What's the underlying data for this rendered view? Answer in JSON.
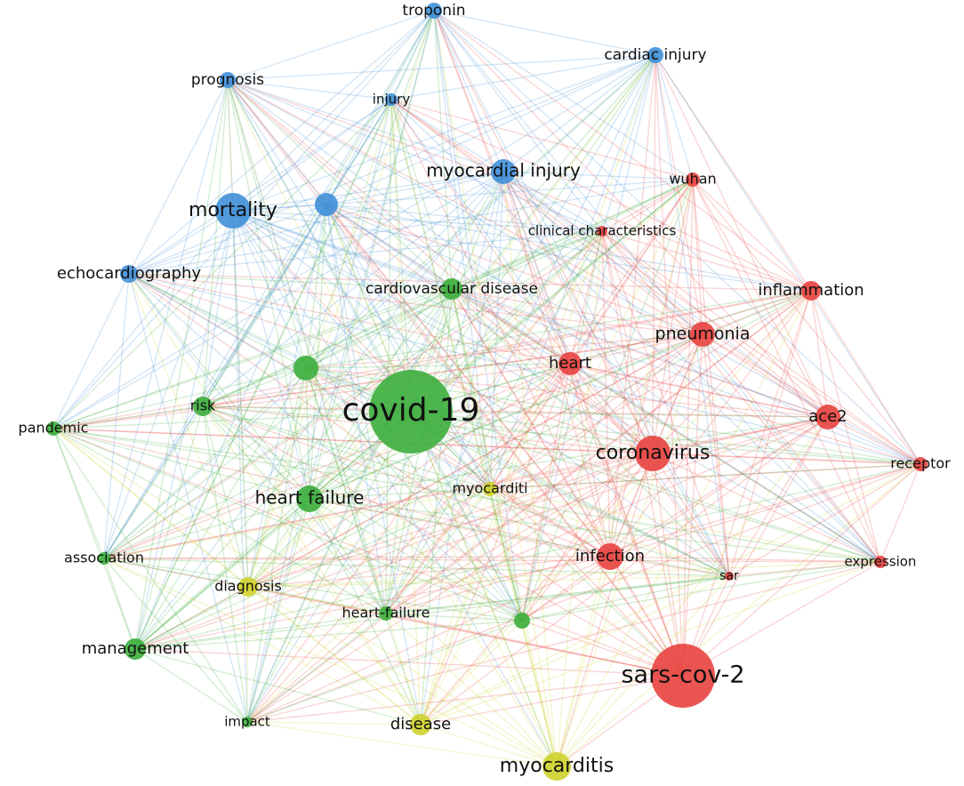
{
  "nodes": [
    {
      "label": "troponin"
    },
    {
      "label": "cardiac injury"
    },
    {
      "label": "prognosis"
    },
    {
      "label": "injury"
    },
    {
      "label": "myocardial injury"
    },
    {
      "label": "mortality"
    },
    {
      "label": "echocardiography"
    },
    {
      "label": "wuhan"
    },
    {
      "label": "clinical characteristics"
    },
    {
      "label": "inflammation"
    },
    {
      "label": "pneumonia"
    },
    {
      "label": "heart"
    },
    {
      "label": "ace2"
    },
    {
      "label": "coronavirus"
    },
    {
      "label": "receptor"
    },
    {
      "label": "infection"
    },
    {
      "label": "expression"
    },
    {
      "label": "sar"
    },
    {
      "label": "sars-cov-2"
    },
    {
      "label": "cardiovascular disease"
    },
    {
      "label": "covid-19"
    },
    {
      "label": "risk"
    },
    {
      "label": "pandemic"
    },
    {
      "label": "heart failure"
    },
    {
      "label": "association"
    },
    {
      "label": "heart-failure"
    },
    {
      "label": "management"
    },
    {
      "label": "impact"
    },
    {
      "label": "myocarditi"
    },
    {
      "label": "diagnosis"
    },
    {
      "label": "disease"
    },
    {
      "label": "myocarditis"
    }
  ]
}
